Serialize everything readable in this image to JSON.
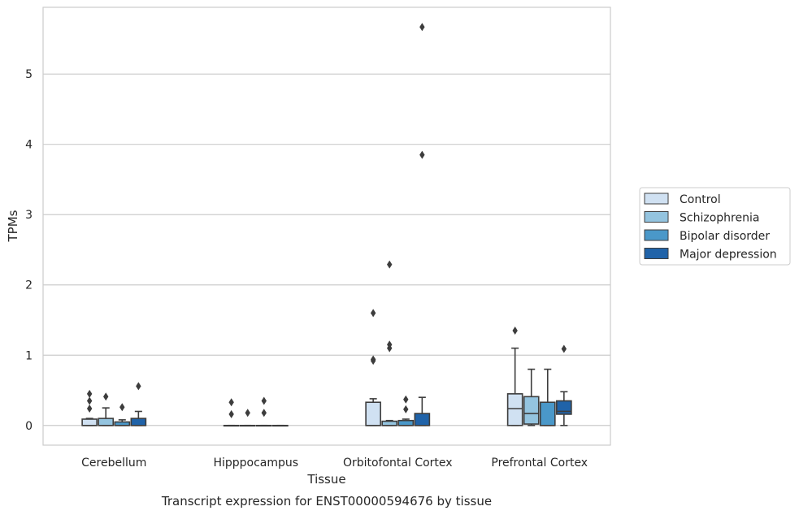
{
  "chart_data": {
    "type": "box",
    "title": "",
    "caption": "Transcript expression for ENST00000594676 by tissue",
    "xlabel": "Tissue",
    "ylabel": "TPMs",
    "ylim": [
      -0.28,
      5.95
    ],
    "yticks": [
      0,
      1,
      2,
      3,
      4,
      5
    ],
    "grid": "horizontal",
    "legend_placement": "right",
    "categories": [
      "Cerebellum",
      "Hipppocampus",
      "Orbitofontal Cortex",
      "Prefrontal Cortex"
    ],
    "series": [
      {
        "name": "Control",
        "color": "#d0e1f2",
        "boxes": [
          {
            "q1": 0.0,
            "median": 0.0,
            "q3": 0.09,
            "whislo": 0.0,
            "whishi": 0.1,
            "fliers": [
              0.24,
              0.35,
              0.45
            ]
          },
          {
            "q1": 0.0,
            "median": 0.0,
            "q3": 0.0,
            "whislo": 0.0,
            "whishi": 0.0,
            "fliers": [
              0.16,
              0.33
            ]
          },
          {
            "q1": 0.0,
            "median": 0.0,
            "q3": 0.33,
            "whislo": 0.0,
            "whishi": 0.38,
            "fliers": [
              0.92,
              0.94,
              1.6
            ]
          },
          {
            "q1": 0.0,
            "median": 0.24,
            "q3": 0.45,
            "whislo": 0.0,
            "whishi": 1.1,
            "fliers": [
              1.35
            ]
          }
        ]
      },
      {
        "name": "Schizophrenia",
        "color": "#94c4df",
        "boxes": [
          {
            "q1": 0.0,
            "median": 0.0,
            "q3": 0.1,
            "whislo": 0.0,
            "whishi": 0.25,
            "fliers": [
              0.41
            ]
          },
          {
            "q1": 0.0,
            "median": 0.0,
            "q3": 0.0,
            "whislo": 0.0,
            "whishi": 0.0,
            "fliers": [
              0.18
            ]
          },
          {
            "q1": 0.0,
            "median": 0.0,
            "q3": 0.06,
            "whislo": 0.0,
            "whishi": 0.07,
            "fliers": [
              1.1,
              1.15,
              2.29
            ]
          },
          {
            "q1": 0.02,
            "median": 0.17,
            "q3": 0.41,
            "whislo": 0.0,
            "whishi": 0.8,
            "fliers": []
          }
        ]
      },
      {
        "name": "Bipolar disorder",
        "color": "#4a98c9",
        "boxes": [
          {
            "q1": 0.0,
            "median": 0.0,
            "q3": 0.05,
            "whislo": 0.0,
            "whishi": 0.08,
            "fliers": [
              0.26
            ]
          },
          {
            "q1": 0.0,
            "median": 0.0,
            "q3": 0.0,
            "whislo": 0.0,
            "whishi": 0.0,
            "fliers": [
              0.18,
              0.35
            ]
          },
          {
            "q1": 0.0,
            "median": 0.0,
            "q3": 0.07,
            "whislo": 0.0,
            "whishi": 0.09,
            "fliers": [
              0.23,
              0.37
            ]
          },
          {
            "q1": 0.0,
            "median": 0.0,
            "q3": 0.33,
            "whislo": 0.0,
            "whishi": 0.8,
            "fliers": []
          }
        ]
      },
      {
        "name": "Major depression",
        "color": "#2063a9",
        "boxes": [
          {
            "q1": 0.0,
            "median": 0.0,
            "q3": 0.1,
            "whislo": 0.0,
            "whishi": 0.2,
            "fliers": [
              0.56
            ]
          },
          {
            "q1": 0.0,
            "median": 0.0,
            "q3": 0.0,
            "whislo": 0.0,
            "whishi": 0.0,
            "fliers": []
          },
          {
            "q1": 0.0,
            "median": 0.0,
            "q3": 0.17,
            "whislo": 0.0,
            "whishi": 0.4,
            "fliers": [
              3.85,
              5.67
            ]
          },
          {
            "q1": 0.16,
            "median": 0.2,
            "q3": 0.35,
            "whislo": 0.0,
            "whishi": 0.48,
            "fliers": [
              1.09
            ]
          }
        ]
      }
    ]
  }
}
